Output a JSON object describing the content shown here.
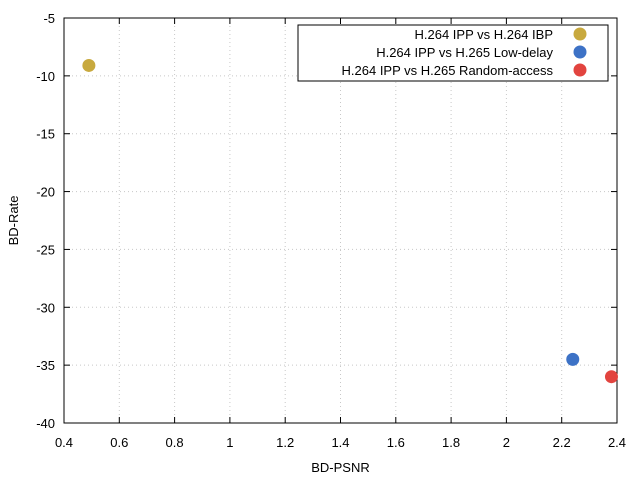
{
  "chart_data": {
    "type": "scatter",
    "xlabel": "BD-PSNR",
    "ylabel": "BD-Rate",
    "xlim": [
      0.4,
      2.4
    ],
    "ylim": [
      -40,
      -5
    ],
    "xticks": [
      0.4,
      0.6,
      0.8,
      1,
      1.2,
      1.4,
      1.6,
      1.8,
      2,
      2.2,
      2.4
    ],
    "xtick_labels": [
      "0.4",
      "0.6",
      "0.8",
      "1",
      "1.2",
      "1.4",
      "1.6",
      "1.8",
      "2",
      "2.2",
      "2.4"
    ],
    "yticks": [
      -40,
      -35,
      -30,
      -25,
      -20,
      -15,
      -10,
      -5
    ],
    "ytick_labels": [
      "-40",
      "-35",
      "-30",
      "-25",
      "-20",
      "-15",
      "-10",
      "-5"
    ],
    "grid": true,
    "legend_position": "top-right",
    "series": [
      {
        "name": "H.264 IPP vs H.264 IBP",
        "color": "#c8a93e",
        "x": [
          0.49
        ],
        "y": [
          -9.1
        ]
      },
      {
        "name": "H.264 IPP vs H.265 Low-delay",
        "color": "#3d72c6",
        "x": [
          2.24
        ],
        "y": [
          -34.5
        ]
      },
      {
        "name": "H.264 IPP vs H.265 Random-access",
        "color": "#e2443f",
        "x": [
          2.38
        ],
        "y": [
          -36.0
        ]
      }
    ]
  }
}
